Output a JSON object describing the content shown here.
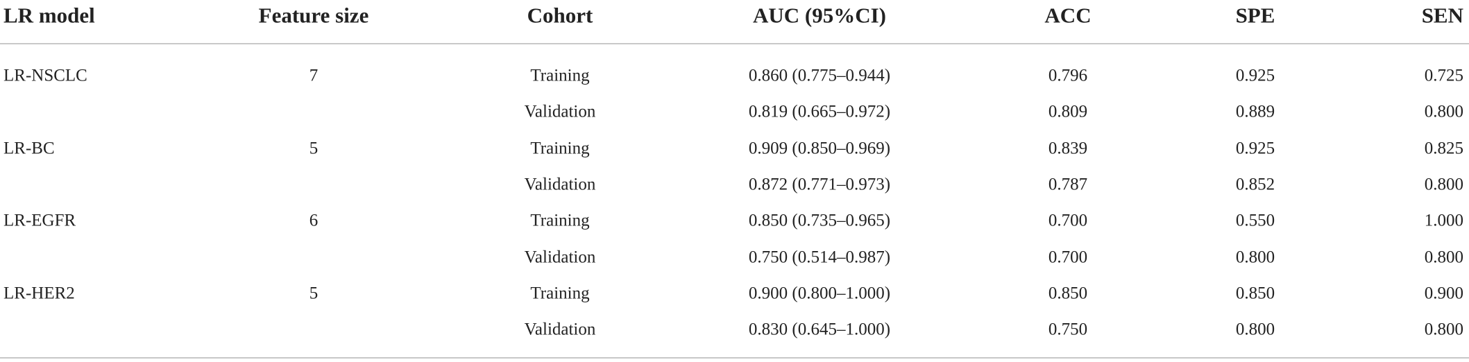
{
  "table": {
    "header": [
      "LR model",
      "Feature size",
      "Cohort",
      "AUC (95%CI)",
      "ACC",
      "SPE",
      "SEN"
    ],
    "groups": [
      {
        "model": "LR-NSCLC",
        "feature_size": 7,
        "rows": [
          [
            "Training",
            "0.860 (0.775–0.944)",
            "0.796",
            "0.925",
            "0.725"
          ],
          [
            "Validation",
            "0.819 (0.665–0.972)",
            "0.809",
            "0.889",
            "0.800"
          ]
        ]
      },
      {
        "model": "LR-BC",
        "feature_size": 5,
        "rows": [
          [
            "Training",
            "0.909 (0.850–0.969)",
            "0.839",
            "0.925",
            "0.825"
          ],
          [
            "Validation",
            "0.872 (0.771–0.973)",
            "0.787",
            "0.852",
            "0.800"
          ]
        ]
      },
      {
        "model": "LR-EGFR",
        "feature_size": 6,
        "rows": [
          [
            "Training",
            "0.850 (0.735–0.965)",
            "0.700",
            "0.550",
            "1.000"
          ],
          [
            "Validation",
            "0.750 (0.514–0.987)",
            "0.700",
            "0.800",
            "0.800"
          ]
        ]
      },
      {
        "model": "LR-HER2",
        "feature_size": 5,
        "rows": [
          [
            "Training",
            "0.900 (0.800–1.000)",
            "0.850",
            "0.850",
            "0.900"
          ],
          [
            "Validation",
            "0.830 (0.645–1.000)",
            "0.750",
            "0.800",
            "0.800"
          ]
        ]
      }
    ]
  }
}
